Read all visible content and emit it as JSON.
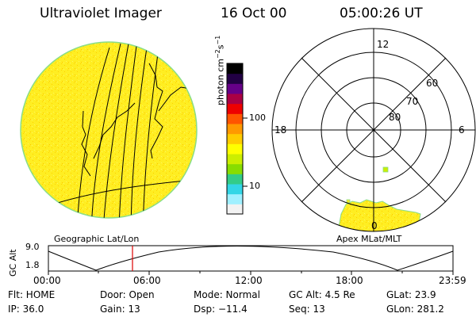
{
  "header": {
    "instrument": "Ultraviolet Imager",
    "date": "16 Oct 00",
    "time": "05:00:26 UT"
  },
  "colorbar": {
    "unit_base": "photon cm",
    "unit_exp1": "−2",
    "unit_s": "s",
    "unit_exp2": "−1",
    "ticks": [
      "100",
      "10"
    ],
    "colors": [
      "#f2f2f2",
      "#a0f0ff",
      "#33d6e6",
      "#33cc88",
      "#88dd00",
      "#ccee00",
      "#ffff00",
      "#ffcc00",
      "#ff9900",
      "#ff5500",
      "#ee0000",
      "#aa0044",
      "#660088",
      "#220044",
      "#000000"
    ]
  },
  "polar": {
    "mlt_labels": [
      "12",
      "18",
      "6",
      "0"
    ],
    "lat_labels": [
      "60",
      "70",
      "80"
    ]
  },
  "map_labels": {
    "geo": "Geographic Lat/Lon",
    "apex": "Apex MLat/MLT"
  },
  "altitude_plot": {
    "axis_label": "GC Alt",
    "y_ticks": [
      "9.0",
      "1.8"
    ],
    "x_ticks": [
      "00:00",
      "06:00",
      "12:00",
      "18:00",
      "23:59"
    ]
  },
  "info": {
    "flt": "Flt: HOME",
    "door": "Door: Open",
    "mode": "Mode: Normal",
    "gc_alt": "GC Alt: 4.5 Re",
    "glat": "GLat:  23.9",
    "ip": "IP: 36.0",
    "gain": "Gain: 13",
    "dsp": "Dsp:  −11.4",
    "seq": "Seq: 13",
    "glon": "GLon: 281.2"
  },
  "colors": {
    "disk": "#ffee22",
    "limb": "#88dd88",
    "time_marker": "#dd0000"
  }
}
